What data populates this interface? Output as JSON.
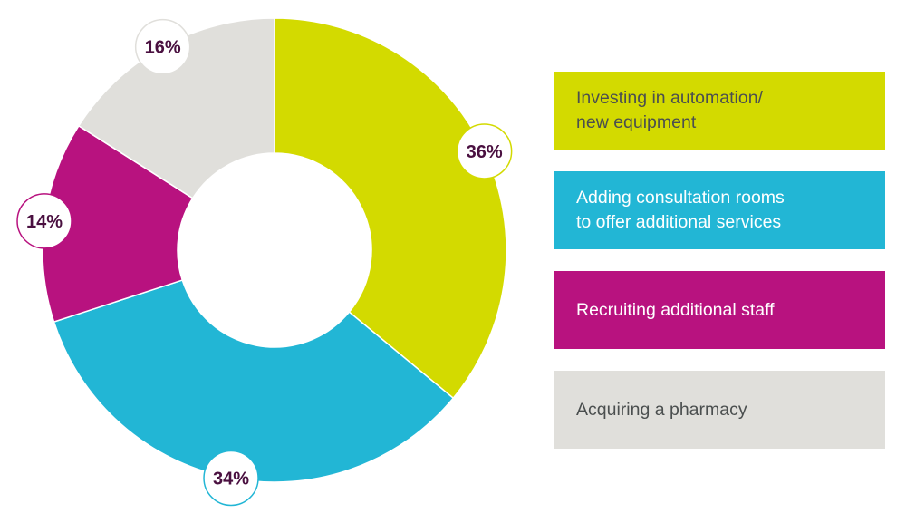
{
  "chart_data": {
    "type": "pie",
    "variant": "donut",
    "categories": [
      "Investing in automation/\nnew equipment",
      "Adding consultation rooms\nto offer additional services",
      "Recruiting additional staff",
      "Acquiring a pharmacy"
    ],
    "values": [
      36,
      34,
      14,
      16
    ],
    "labels": [
      "36%",
      "34%",
      "14%",
      "16%"
    ],
    "colors": [
      "#d3da00",
      "#22b6d5",
      "#b8127f",
      "#e0dfdb"
    ],
    "label_text_colors": [
      "#4b4f4f",
      "#ffffff",
      "#ffffff",
      "#4b4f4f"
    ],
    "legend_placement": "right",
    "start_angle_deg": 0,
    "direction": "clockwise"
  }
}
